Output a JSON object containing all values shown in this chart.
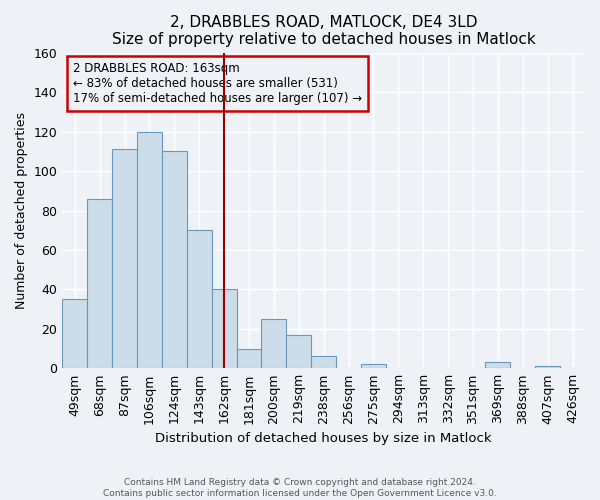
{
  "title": "2, DRABBLES ROAD, MATLOCK, DE4 3LD",
  "subtitle": "Size of property relative to detached houses in Matlock",
  "xlabel": "Distribution of detached houses by size in Matlock",
  "ylabel": "Number of detached properties",
  "bin_labels": [
    "49sqm",
    "68sqm",
    "87sqm",
    "106sqm",
    "124sqm",
    "143sqm",
    "162sqm",
    "181sqm",
    "200sqm",
    "219sqm",
    "238sqm",
    "256sqm",
    "275sqm",
    "294sqm",
    "313sqm",
    "332sqm",
    "351sqm",
    "369sqm",
    "388sqm",
    "407sqm",
    "426sqm"
  ],
  "bar_heights": [
    35,
    86,
    111,
    120,
    110,
    70,
    40,
    10,
    25,
    17,
    6,
    0,
    2,
    0,
    0,
    0,
    0,
    3,
    0,
    1,
    0
  ],
  "bar_color": "#ccdce8",
  "bar_edgecolor": "#6699bb",
  "vline_x_index": 6,
  "vline_color": "#990000",
  "annotation_title": "2 DRABBLES ROAD: 163sqm",
  "annotation_line1": "← 83% of detached houses are smaller (531)",
  "annotation_line2": "17% of semi-detached houses are larger (107) →",
  "annotation_box_edgecolor": "#cc0000",
  "ylim": [
    0,
    160
  ],
  "yticks": [
    0,
    20,
    40,
    60,
    80,
    100,
    120,
    140,
    160
  ],
  "footnote1": "Contains HM Land Registry data © Crown copyright and database right 2024.",
  "footnote2": "Contains public sector information licensed under the Open Government Licence v3.0.",
  "bg_color": "#eef2f7",
  "grid_color": "#ffffff"
}
